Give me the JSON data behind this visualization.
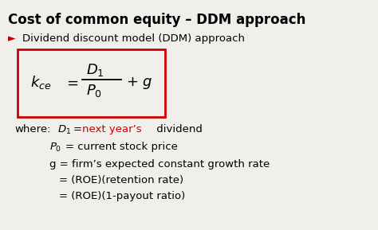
{
  "title": "Cost of common equity – DDM approach",
  "formula_box_color": "#cc0000",
  "background_color": "#f0efeb",
  "title_color": "#000000",
  "arrow_color": "#cc0000",
  "red_color": "#cc0000",
  "black_color": "#000000",
  "bullet_text": "Dividend discount model (DDM) approach",
  "g_line": "g = firm’s expected constant growth rate",
  "roe1_line": "= (ROE)(retention rate)",
  "roe2_line": "= (ROE)(1-payout ratio)"
}
